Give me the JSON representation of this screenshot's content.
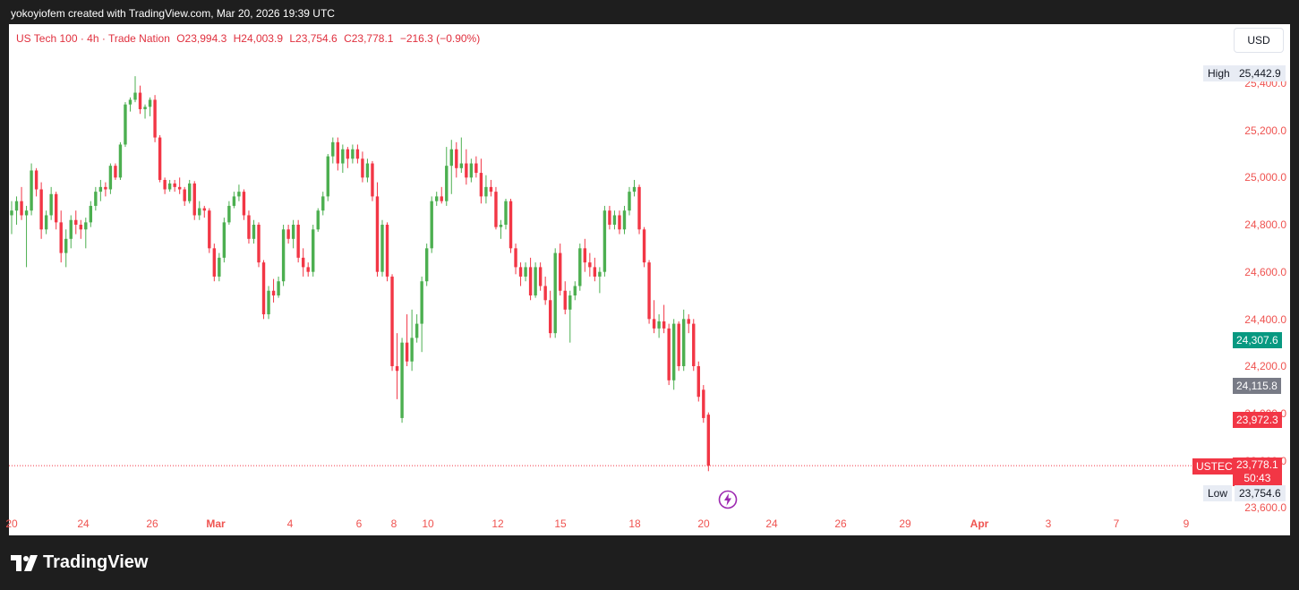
{
  "caption": "yokoyiofem created with TradingView.com, Mar 20, 2026 19:39 UTC",
  "brand": "TradingView",
  "legend": {
    "symbol": "US Tech 100 · 4h · Trade Nation",
    "open": "O23,994.3",
    "high": "H24,003.9",
    "low": "L23,754.6",
    "close": "C23,778.1",
    "change": "−216.3 (−0.90%)"
  },
  "currency": "USD",
  "colors": {
    "up": "#4caf50",
    "down": "#f23645",
    "ylabel": "#ef5350",
    "green_badge": "#089981",
    "gray_badge": "#787b86",
    "red_badge": "#f23645"
  },
  "y_axis_labels": [
    "25,400.0",
    "25,200.0",
    "25,000.0",
    "24,800.0",
    "24,600.0",
    "24,400.0",
    "24,200.0",
    "24,000.0",
    "23,800.0",
    "23,600.0"
  ],
  "x_axis_labels": [
    "20",
    "24",
    "26",
    "Mar",
    "4",
    "6",
    "8",
    "10",
    "12",
    "15",
    "18",
    "20",
    "24",
    "26",
    "29",
    "Apr",
    "3",
    "7",
    "9"
  ],
  "badges": {
    "high_label": "High",
    "high_value": "25,442.9",
    "green_value": "24,307.6",
    "gray_value": "24,115.8",
    "red_value": "23,972.3",
    "symbol_tag": "USTEC",
    "last_value": "23,778.1",
    "countdown": "50:43",
    "low_label": "Low",
    "low_value": "23,754.6"
  },
  "chart_data": {
    "type": "candlestick",
    "timeframe": "4h",
    "symbol": "US Tech 100",
    "ylim": [
      23550,
      25500
    ],
    "high": 25442.9,
    "low": 23754.6,
    "last": 23778.1,
    "candles": [
      {
        "o": 24840,
        "h": 24900,
        "l": 24760,
        "c": 24860
      },
      {
        "o": 24860,
        "h": 24920,
        "l": 24800,
        "c": 24900
      },
      {
        "o": 24900,
        "h": 24960,
        "l": 24820,
        "c": 24840
      },
      {
        "o": 24840,
        "h": 24880,
        "l": 24620,
        "c": 24860
      },
      {
        "o": 24860,
        "h": 25060,
        "l": 24840,
        "c": 25030
      },
      {
        "o": 25030,
        "h": 25040,
        "l": 24920,
        "c": 24950
      },
      {
        "o": 24950,
        "h": 24980,
        "l": 24740,
        "c": 24780
      },
      {
        "o": 24780,
        "h": 24860,
        "l": 24760,
        "c": 24840
      },
      {
        "o": 24840,
        "h": 24960,
        "l": 24820,
        "c": 24930
      },
      {
        "o": 24930,
        "h": 24940,
        "l": 24780,
        "c": 24810
      },
      {
        "o": 24810,
        "h": 24860,
        "l": 24640,
        "c": 24680
      },
      {
        "o": 24680,
        "h": 24780,
        "l": 24620,
        "c": 24740
      },
      {
        "o": 24740,
        "h": 24840,
        "l": 24700,
        "c": 24820
      },
      {
        "o": 24820,
        "h": 24860,
        "l": 24760,
        "c": 24800
      },
      {
        "o": 24800,
        "h": 24820,
        "l": 24740,
        "c": 24780
      },
      {
        "o": 24780,
        "h": 24830,
        "l": 24700,
        "c": 24810
      },
      {
        "o": 24810,
        "h": 24900,
        "l": 24790,
        "c": 24880
      },
      {
        "o": 24880,
        "h": 24960,
        "l": 24860,
        "c": 24940
      },
      {
        "o": 24940,
        "h": 24990,
        "l": 24900,
        "c": 24960
      },
      {
        "o": 24960,
        "h": 24980,
        "l": 24920,
        "c": 24950
      },
      {
        "o": 24950,
        "h": 25060,
        "l": 24930,
        "c": 25050
      },
      {
        "o": 25050,
        "h": 25060,
        "l": 24990,
        "c": 25000
      },
      {
        "o": 25000,
        "h": 25150,
        "l": 24990,
        "c": 25140
      },
      {
        "o": 25140,
        "h": 25320,
        "l": 25130,
        "c": 25310
      },
      {
        "o": 25310,
        "h": 25340,
        "l": 25280,
        "c": 25330
      },
      {
        "o": 25330,
        "h": 25430,
        "l": 25320,
        "c": 25360
      },
      {
        "o": 25360,
        "h": 25390,
        "l": 25270,
        "c": 25290
      },
      {
        "o": 25290,
        "h": 25310,
        "l": 25250,
        "c": 25300
      },
      {
        "o": 25300,
        "h": 25340,
        "l": 25260,
        "c": 25330
      },
      {
        "o": 25330,
        "h": 25350,
        "l": 25150,
        "c": 25170
      },
      {
        "o": 25170,
        "h": 25180,
        "l": 24980,
        "c": 24990
      },
      {
        "o": 24990,
        "h": 25000,
        "l": 24930,
        "c": 24950
      },
      {
        "o": 24950,
        "h": 24990,
        "l": 24940,
        "c": 24975
      },
      {
        "o": 24975,
        "h": 24990,
        "l": 24940,
        "c": 24960
      },
      {
        "o": 24960,
        "h": 25000,
        "l": 24930,
        "c": 24950
      },
      {
        "o": 24950,
        "h": 24960,
        "l": 24880,
        "c": 24900
      },
      {
        "o": 24900,
        "h": 24990,
        "l": 24890,
        "c": 24975
      },
      {
        "o": 24975,
        "h": 24985,
        "l": 24820,
        "c": 24840
      },
      {
        "o": 24840,
        "h": 24900,
        "l": 24820,
        "c": 24870
      },
      {
        "o": 24870,
        "h": 24880,
        "l": 24830,
        "c": 24860
      },
      {
        "o": 24860,
        "h": 24870,
        "l": 24680,
        "c": 24700
      },
      {
        "o": 24700,
        "h": 24720,
        "l": 24560,
        "c": 24580
      },
      {
        "o": 24580,
        "h": 24680,
        "l": 24560,
        "c": 24660
      },
      {
        "o": 24660,
        "h": 24830,
        "l": 24640,
        "c": 24810
      },
      {
        "o": 24810,
        "h": 24900,
        "l": 24800,
        "c": 24880
      },
      {
        "o": 24880,
        "h": 24940,
        "l": 24870,
        "c": 24920
      },
      {
        "o": 24920,
        "h": 24970,
        "l": 24900,
        "c": 24940
      },
      {
        "o": 24940,
        "h": 24950,
        "l": 24820,
        "c": 24840
      },
      {
        "o": 24840,
        "h": 24860,
        "l": 24720,
        "c": 24740
      },
      {
        "o": 24740,
        "h": 24820,
        "l": 24720,
        "c": 24800
      },
      {
        "o": 24800,
        "h": 24810,
        "l": 24620,
        "c": 24640
      },
      {
        "o": 24640,
        "h": 24650,
        "l": 24400,
        "c": 24420
      },
      {
        "o": 24420,
        "h": 24540,
        "l": 24400,
        "c": 24520
      },
      {
        "o": 24520,
        "h": 24570,
        "l": 24470,
        "c": 24500
      },
      {
        "o": 24500,
        "h": 24580,
        "l": 24490,
        "c": 24560
      },
      {
        "o": 24560,
        "h": 24800,
        "l": 24540,
        "c": 24780
      },
      {
        "o": 24780,
        "h": 24800,
        "l": 24720,
        "c": 24740
      },
      {
        "o": 24740,
        "h": 24820,
        "l": 24700,
        "c": 24800
      },
      {
        "o": 24800,
        "h": 24820,
        "l": 24640,
        "c": 24660
      },
      {
        "o": 24660,
        "h": 24700,
        "l": 24580,
        "c": 24620
      },
      {
        "o": 24620,
        "h": 24640,
        "l": 24580,
        "c": 24600
      },
      {
        "o": 24600,
        "h": 24800,
        "l": 24580,
        "c": 24780
      },
      {
        "o": 24780,
        "h": 24870,
        "l": 24770,
        "c": 24860
      },
      {
        "o": 24860,
        "h": 24940,
        "l": 24840,
        "c": 24920
      },
      {
        "o": 24920,
        "h": 25100,
        "l": 24900,
        "c": 25090
      },
      {
        "o": 25090,
        "h": 25170,
        "l": 25060,
        "c": 25150
      },
      {
        "o": 25150,
        "h": 25170,
        "l": 25030,
        "c": 25060
      },
      {
        "o": 25060,
        "h": 25140,
        "l": 25020,
        "c": 25120
      },
      {
        "o": 25120,
        "h": 25130,
        "l": 25040,
        "c": 25080
      },
      {
        "o": 25080,
        "h": 25140,
        "l": 25060,
        "c": 25120
      },
      {
        "o": 25120,
        "h": 25140,
        "l": 25060,
        "c": 25080
      },
      {
        "o": 25080,
        "h": 25110,
        "l": 24980,
        "c": 25000
      },
      {
        "o": 25000,
        "h": 25080,
        "l": 24980,
        "c": 25060
      },
      {
        "o": 25060,
        "h": 25070,
        "l": 24900,
        "c": 24920
      },
      {
        "o": 24920,
        "h": 24980,
        "l": 24580,
        "c": 24600
      },
      {
        "o": 24600,
        "h": 24820,
        "l": 24580,
        "c": 24800
      },
      {
        "o": 24800,
        "h": 24810,
        "l": 24560,
        "c": 24580
      },
      {
        "o": 24580,
        "h": 24590,
        "l": 24180,
        "c": 24200
      },
      {
        "o": 24200,
        "h": 24340,
        "l": 24060,
        "c": 24180
      },
      {
        "o": 23980,
        "h": 24320,
        "l": 23960,
        "c": 24300
      },
      {
        "o": 24300,
        "h": 24420,
        "l": 24200,
        "c": 24220
      },
      {
        "o": 24220,
        "h": 24440,
        "l": 24180,
        "c": 24320
      },
      {
        "o": 24320,
        "h": 24420,
        "l": 24300,
        "c": 24380
      },
      {
        "o": 24380,
        "h": 24580,
        "l": 24260,
        "c": 24560
      },
      {
        "o": 24560,
        "h": 24720,
        "l": 24540,
        "c": 24700
      },
      {
        "o": 24700,
        "h": 24920,
        "l": 24680,
        "c": 24900
      },
      {
        "o": 24900,
        "h": 24940,
        "l": 24880,
        "c": 24920
      },
      {
        "o": 24920,
        "h": 24960,
        "l": 24890,
        "c": 24900
      },
      {
        "o": 24900,
        "h": 25130,
        "l": 24880,
        "c": 25050
      },
      {
        "o": 25050,
        "h": 25160,
        "l": 24930,
        "c": 25120
      },
      {
        "o": 25120,
        "h": 25150,
        "l": 25000,
        "c": 25040
      },
      {
        "o": 25040,
        "h": 25170,
        "l": 25020,
        "c": 25060
      },
      {
        "o": 25060,
        "h": 25120,
        "l": 24970,
        "c": 25000
      },
      {
        "o": 25000,
        "h": 25080,
        "l": 24980,
        "c": 25060
      },
      {
        "o": 25060,
        "h": 25090,
        "l": 25000,
        "c": 25020
      },
      {
        "o": 25020,
        "h": 25080,
        "l": 24890,
        "c": 24920
      },
      {
        "o": 24920,
        "h": 25010,
        "l": 24890,
        "c": 24960
      },
      {
        "o": 24960,
        "h": 24990,
        "l": 24920,
        "c": 24940
      },
      {
        "o": 24940,
        "h": 24960,
        "l": 24780,
        "c": 24790
      },
      {
        "o": 24790,
        "h": 24820,
        "l": 24740,
        "c": 24800
      },
      {
        "o": 24800,
        "h": 24910,
        "l": 24780,
        "c": 24900
      },
      {
        "o": 24900,
        "h": 24910,
        "l": 24680,
        "c": 24700
      },
      {
        "o": 24700,
        "h": 24720,
        "l": 24590,
        "c": 24620
      },
      {
        "o": 24620,
        "h": 24640,
        "l": 24540,
        "c": 24580
      },
      {
        "o": 24580,
        "h": 24640,
        "l": 24560,
        "c": 24620
      },
      {
        "o": 24620,
        "h": 24660,
        "l": 24480,
        "c": 24500
      },
      {
        "o": 24500,
        "h": 24640,
        "l": 24490,
        "c": 24620
      },
      {
        "o": 24620,
        "h": 24640,
        "l": 24520,
        "c": 24540
      },
      {
        "o": 24540,
        "h": 24580,
        "l": 24460,
        "c": 24480
      },
      {
        "o": 24480,
        "h": 24520,
        "l": 24320,
        "c": 24340
      },
      {
        "o": 24340,
        "h": 24700,
        "l": 24320,
        "c": 24680
      },
      {
        "o": 24680,
        "h": 24720,
        "l": 24500,
        "c": 24520
      },
      {
        "o": 24520,
        "h": 24560,
        "l": 24420,
        "c": 24440
      },
      {
        "o": 24440,
        "h": 24520,
        "l": 24300,
        "c": 24500
      },
      {
        "o": 24500,
        "h": 24560,
        "l": 24480,
        "c": 24540
      },
      {
        "o": 24540,
        "h": 24720,
        "l": 24520,
        "c": 24700
      },
      {
        "o": 24700,
        "h": 24740,
        "l": 24600,
        "c": 24640
      },
      {
        "o": 24640,
        "h": 24680,
        "l": 24580,
        "c": 24620
      },
      {
        "o": 24620,
        "h": 24660,
        "l": 24560,
        "c": 24580
      },
      {
        "o": 24580,
        "h": 24620,
        "l": 24510,
        "c": 24600
      },
      {
        "o": 24600,
        "h": 24880,
        "l": 24580,
        "c": 24860
      },
      {
        "o": 24860,
        "h": 24880,
        "l": 24780,
        "c": 24800
      },
      {
        "o": 24800,
        "h": 24860,
        "l": 24780,
        "c": 24840
      },
      {
        "o": 24840,
        "h": 24860,
        "l": 24760,
        "c": 24780
      },
      {
        "o": 24780,
        "h": 24880,
        "l": 24760,
        "c": 24860
      },
      {
        "o": 24860,
        "h": 24960,
        "l": 24840,
        "c": 24940
      },
      {
        "o": 24940,
        "h": 24990,
        "l": 24920,
        "c": 24960
      },
      {
        "o": 24960,
        "h": 24970,
        "l": 24760,
        "c": 24780
      },
      {
        "o": 24780,
        "h": 24790,
        "l": 24620,
        "c": 24640
      },
      {
        "o": 24640,
        "h": 24650,
        "l": 24380,
        "c": 24400
      },
      {
        "o": 24400,
        "h": 24480,
        "l": 24340,
        "c": 24360
      },
      {
        "o": 24360,
        "h": 24420,
        "l": 24320,
        "c": 24390
      },
      {
        "o": 24390,
        "h": 24460,
        "l": 24340,
        "c": 24360
      },
      {
        "o": 24360,
        "h": 24380,
        "l": 24120,
        "c": 24140
      },
      {
        "o": 24140,
        "h": 24400,
        "l": 24100,
        "c": 24380
      },
      {
        "o": 24380,
        "h": 24390,
        "l": 24180,
        "c": 24200
      },
      {
        "o": 24200,
        "h": 24440,
        "l": 24180,
        "c": 24400
      },
      {
        "o": 24400,
        "h": 24420,
        "l": 24340,
        "c": 24380
      },
      {
        "o": 24380,
        "h": 24400,
        "l": 24180,
        "c": 24200
      },
      {
        "o": 24200,
        "h": 24220,
        "l": 24050,
        "c": 24070
      },
      {
        "o": 24100,
        "h": 24120,
        "l": 23960,
        "c": 23980
      },
      {
        "o": 23994.3,
        "h": 24003.9,
        "l": 23754.6,
        "c": 23778.1
      }
    ]
  }
}
